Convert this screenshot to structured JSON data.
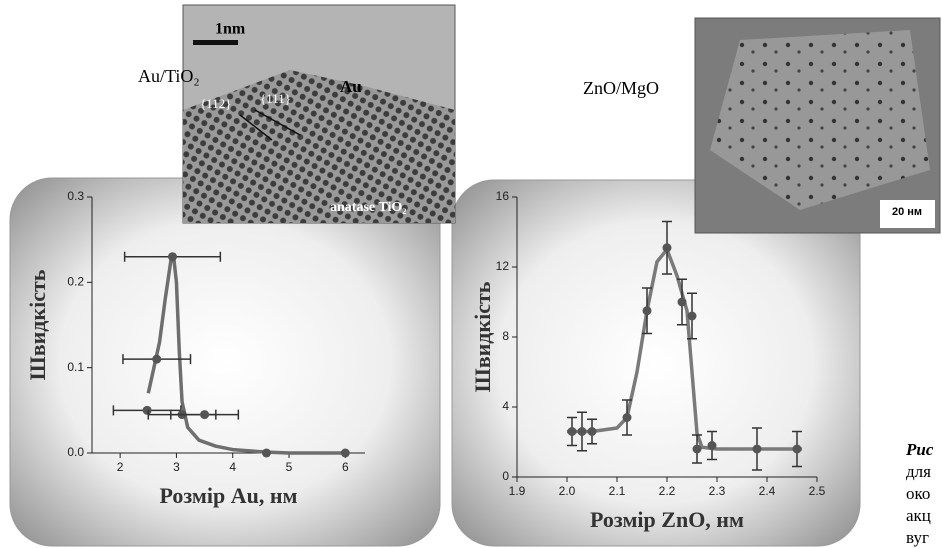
{
  "chart_data": [
    {
      "type": "scatter",
      "x_label": "Розмір Au, нм",
      "y_label": "Швидкість",
      "xlim": [
        1.5,
        6.35
      ],
      "ylim": [
        0,
        0.3
      ],
      "xticks": [
        2,
        3,
        4,
        5,
        6
      ],
      "yticks": [
        {
          "value": 0,
          "label": "0.0"
        },
        0.1,
        0.2,
        0.3
      ],
      "series": [
        {
          "mode": "line",
          "color": "#6e6e6e",
          "x": [
            2.5,
            2.6,
            2.7,
            2.8,
            2.9,
            2.95,
            3.0,
            3.05,
            3.1,
            3.2,
            3.4,
            3.7,
            4.0,
            4.6,
            5.0,
            6.0
          ],
          "values": [
            0.07,
            0.1,
            0.13,
            0.18,
            0.225,
            0.23,
            0.2,
            0.12,
            0.06,
            0.03,
            0.015,
            0.008,
            0.004,
            0.001,
            0,
            0
          ]
        },
        {
          "mode": "markers",
          "color": "#555555",
          "x": [
            2.93,
            2.65,
            2.48,
            3.1,
            3.5,
            4.6,
            6.0
          ],
          "values": [
            0.23,
            0.11,
            0.05,
            0.045,
            0.045,
            0,
            0
          ],
          "xerr": [
            0.85,
            0.6,
            0.6,
            0.6,
            0.6,
            null,
            null
          ]
        }
      ]
    },
    {
      "type": "scatter",
      "x_label": "Розмір ZnO, нм",
      "y_label": "Швидкість",
      "xlim": [
        1.9,
        2.5
      ],
      "ylim": [
        0,
        16
      ],
      "xticks": [
        1.9,
        {
          "value": 2,
          "label": "2.0"
        },
        2.1,
        2.2,
        2.3,
        2.4,
        2.5
      ],
      "yticks": [
        0,
        4,
        8,
        12,
        16
      ],
      "series": [
        {
          "mode": "line",
          "color": "#7a7a7a",
          "x": [
            2.0,
            2.05,
            2.1,
            2.12,
            2.14,
            2.16,
            2.18,
            2.2,
            2.22,
            2.24,
            2.25,
            2.26,
            2.27,
            2.3,
            2.4,
            2.47
          ],
          "values": [
            2.6,
            2.6,
            2.8,
            3.4,
            6,
            9.5,
            12.3,
            13.0,
            11.5,
            9.5,
            6,
            2.5,
            1.7,
            1.6,
            1.6,
            1.6
          ]
        },
        {
          "mode": "markers",
          "color": "#555555",
          "x": [
            2.01,
            2.03,
            2.05,
            2.12,
            2.16,
            2.2,
            2.23,
            2.25,
            2.26,
            2.29,
            2.38,
            2.46
          ],
          "values": [
            2.6,
            2.6,
            2.6,
            3.4,
            9.5,
            13.1,
            10.0,
            9.2,
            1.6,
            1.8,
            1.6,
            1.6
          ],
          "yerr": [
            0.8,
            1.1,
            0.7,
            1.0,
            1.3,
            1.5,
            1.3,
            1.3,
            0.8,
            0.8,
            1.2,
            1.0
          ]
        }
      ]
    }
  ],
  "image_labels": {
    "left_sample": "Au/TiO₂",
    "scale_left": "1nm",
    "plane_111": "{111}",
    "plane_112": "{112}",
    "particle": "Au",
    "support": "anatase TiO₂",
    "right_sample": "ZnO/MgO",
    "scale_right": "20 нм"
  },
  "caption_fragments": [
    "Рис",
    "для",
    "око",
    "акц",
    "вуг"
  ]
}
